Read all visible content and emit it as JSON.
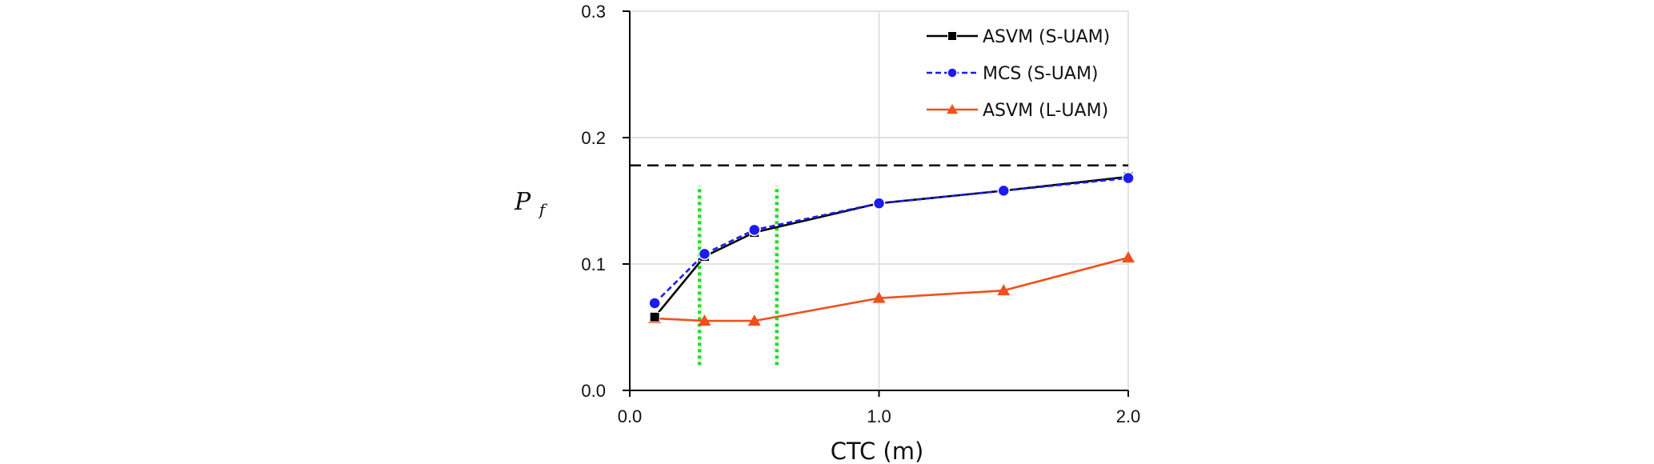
{
  "chart_data": {
    "type": "line",
    "xlabel": "CTC (m)",
    "ylabel": "P",
    "ylabel_sub": "f",
    "xlim": [
      0.0,
      2.0
    ],
    "ylim": [
      0.0,
      0.3
    ],
    "x_ticks": [
      "0.0",
      "1.0",
      "2.0"
    ],
    "x_tick_values": [
      0.0,
      1.0,
      2.0
    ],
    "y_ticks": [
      "0.0",
      "0.1",
      "0.2",
      "0.3"
    ],
    "y_tick_values": [
      0.0,
      0.1,
      0.2,
      0.3
    ],
    "grid": true,
    "legend_position": "top-right",
    "series": [
      {
        "name": "ASVM (S-UAM)",
        "color": "#000000",
        "line_style": "solid",
        "marker": "square",
        "x": [
          0.1,
          0.3,
          0.5,
          1.0,
          1.5,
          2.0
        ],
        "y": [
          0.058,
          0.106,
          0.125,
          0.148,
          0.158,
          0.169
        ]
      },
      {
        "name": "MCS (S-UAM)",
        "color": "#1c1cf0",
        "line_style": "dashed",
        "marker": "circle",
        "x": [
          0.1,
          0.3,
          0.5,
          1.0,
          1.5,
          2.0
        ],
        "y": [
          0.069,
          0.108,
          0.127,
          0.148,
          0.158,
          0.168
        ]
      },
      {
        "name": "ASVM (L-UAM)",
        "color": "#f0501e",
        "line_style": "solid",
        "marker": "triangle",
        "x": [
          0.1,
          0.3,
          0.5,
          1.0,
          1.5,
          2.0
        ],
        "y": [
          0.057,
          0.055,
          0.055,
          0.073,
          0.079,
          0.105
        ]
      }
    ],
    "reference_lines": [
      {
        "orientation": "horizontal",
        "value": 0.178,
        "color": "#000000",
        "style": "dashed"
      },
      {
        "orientation": "vertical",
        "value": 0.28,
        "range": [
          0.02,
          0.162
        ],
        "color": "#22dd22",
        "style": "dotted"
      },
      {
        "orientation": "vertical",
        "value": 0.59,
        "range": [
          0.02,
          0.162
        ],
        "color": "#22dd22",
        "style": "dotted"
      }
    ]
  }
}
